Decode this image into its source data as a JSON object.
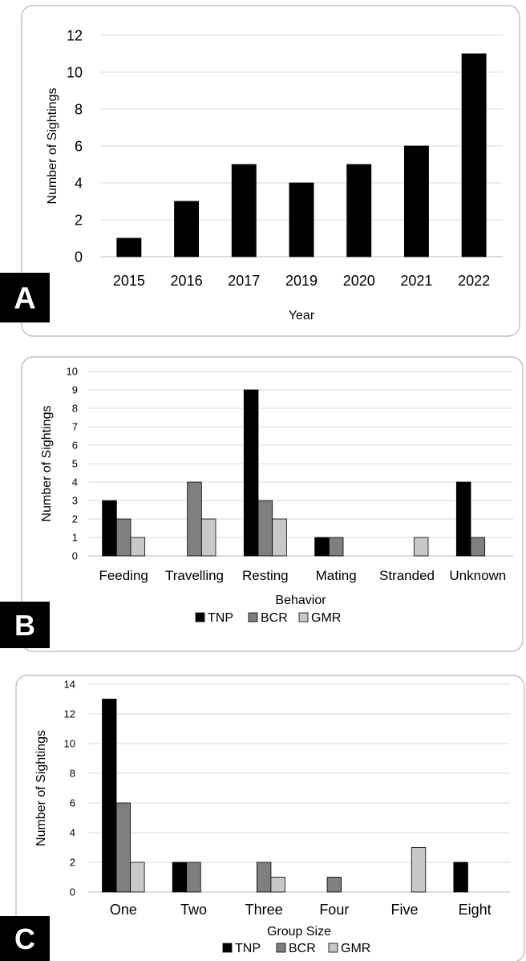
{
  "chart_data": [
    {
      "type": "bar",
      "panel_label": "A",
      "categories": [
        "2015",
        "2016",
        "2017",
        "2019",
        "2020",
        "2021",
        "2022"
      ],
      "series": [
        {
          "values": [
            1,
            3,
            5,
            4,
            5,
            6,
            11
          ],
          "color": "#000000"
        }
      ],
      "xlabel": "Year",
      "ylabel": "Number of Sightings",
      "ylim": [
        0,
        12
      ],
      "yticks": [
        0,
        2,
        4,
        6,
        8,
        10,
        12
      ],
      "grid": true,
      "legend": null
    },
    {
      "type": "bar",
      "panel_label": "B",
      "categories": [
        "Feeding",
        "Travelling",
        "Resting",
        "Mating",
        "Stranded",
        "Unknown"
      ],
      "series": [
        {
          "name": "TNP",
          "values": [
            3,
            0,
            9,
            1,
            0,
            4
          ],
          "color": "#000000"
        },
        {
          "name": "BCR",
          "values": [
            2,
            4,
            3,
            1,
            0,
            1
          ],
          "color": "#7f7f7f"
        },
        {
          "name": "GMR",
          "values": [
            1,
            2,
            2,
            0,
            1,
            0
          ],
          "color": "#c8c8c8"
        }
      ],
      "xlabel": "Behavior",
      "ylabel": "Number of Sightings",
      "ylim": [
        0,
        10
      ],
      "yticks": [
        0,
        1,
        2,
        3,
        4,
        5,
        6,
        7,
        8,
        9,
        10
      ],
      "grid": true,
      "legend": "bottom"
    },
    {
      "type": "bar",
      "panel_label": "C",
      "categories": [
        "One",
        "Two",
        "Three",
        "Four",
        "Five",
        "Eight"
      ],
      "series": [
        {
          "name": "TNP",
          "values": [
            13,
            2,
            0,
            0,
            0,
            2
          ],
          "color": "#000000"
        },
        {
          "name": "BCR",
          "values": [
            6,
            2,
            2,
            1,
            0,
            0
          ],
          "color": "#7f7f7f"
        },
        {
          "name": "GMR",
          "values": [
            2,
            0,
            1,
            0,
            3,
            0
          ],
          "color": "#c8c8c8"
        }
      ],
      "xlabel": "Group Size",
      "ylabel": "Number of Sightings",
      "ylim": [
        0,
        14
      ],
      "yticks": [
        0,
        2,
        4,
        6,
        8,
        10,
        12,
        14
      ],
      "grid": true,
      "legend": "bottom"
    }
  ]
}
